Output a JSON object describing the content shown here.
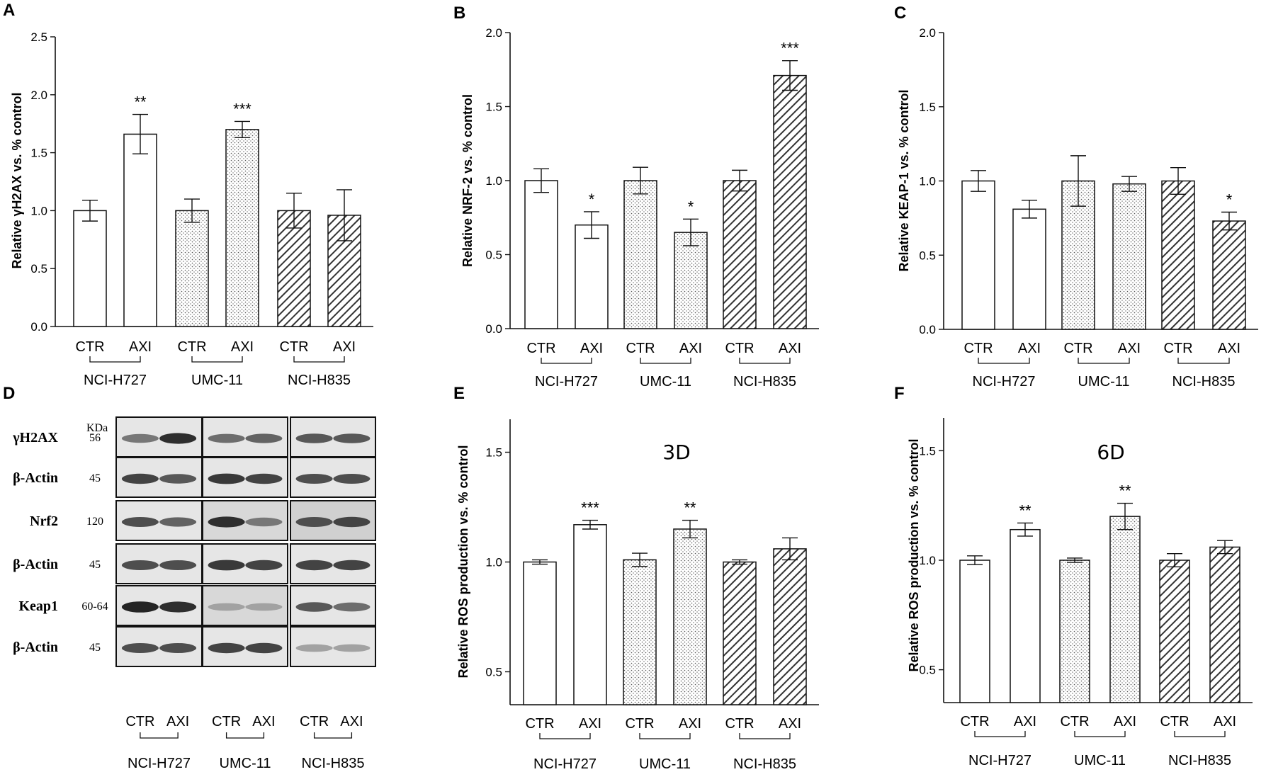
{
  "panels": {
    "A": "A",
    "B": "B",
    "C": "C",
    "D": "D",
    "E": "E",
    "F": "F"
  },
  "chart_data": [
    {
      "id": "A",
      "type": "bar",
      "ylabel": "Relative γH2AX vs. % control",
      "ylim": [
        0,
        2.5
      ],
      "yticks": [
        "0.0",
        "0.5",
        "1.0",
        "1.5",
        "2.0",
        "2.5"
      ],
      "categories": [
        "CTR",
        "AXI",
        "CTR",
        "AXI",
        "CTR",
        "AXI"
      ],
      "groups": [
        "NCI-H727",
        "UMC-11",
        "NCI-H835"
      ],
      "values": [
        1.0,
        1.66,
        1.0,
        1.7,
        1.0,
        0.96
      ],
      "errors": [
        0.09,
        0.17,
        0.1,
        0.07,
        0.15,
        0.22
      ],
      "significance": [
        "",
        "**",
        "",
        "***",
        "",
        ""
      ],
      "patterns": [
        "none",
        "none",
        "dots",
        "dots",
        "hatch",
        "hatch"
      ],
      "title": ""
    },
    {
      "id": "B",
      "type": "bar",
      "ylabel": "Relative NRF-2 vs. % control",
      "ylim": [
        0,
        2.0
      ],
      "yticks": [
        "0.0",
        "0.5",
        "1.0",
        "1.5",
        "2.0"
      ],
      "categories": [
        "CTR",
        "AXI",
        "CTR",
        "AXI",
        "CTR",
        "AXI"
      ],
      "groups": [
        "NCI-H727",
        "UMC-11",
        "NCI-H835"
      ],
      "values": [
        1.0,
        0.7,
        1.0,
        0.65,
        1.0,
        1.71
      ],
      "errors": [
        0.08,
        0.09,
        0.09,
        0.09,
        0.07,
        0.1
      ],
      "significance": [
        "",
        "*",
        "",
        "*",
        "",
        "***"
      ],
      "patterns": [
        "none",
        "none",
        "dots",
        "dots",
        "hatch",
        "hatch"
      ],
      "title": ""
    },
    {
      "id": "C",
      "type": "bar",
      "ylabel": "Relative KEAP-1 vs. % control",
      "ylim": [
        0,
        2.0
      ],
      "yticks": [
        "0.0",
        "0.5",
        "1.0",
        "1.5",
        "2.0"
      ],
      "categories": [
        "CTR",
        "AXI",
        "CTR",
        "AXI",
        "CTR",
        "AXI"
      ],
      "groups": [
        "NCI-H727",
        "UMC-11",
        "NCI-H835"
      ],
      "values": [
        1.0,
        0.81,
        1.0,
        0.98,
        1.0,
        0.73
      ],
      "errors": [
        0.07,
        0.06,
        0.17,
        0.05,
        0.09,
        0.06
      ],
      "significance": [
        "",
        "",
        "",
        "",
        "",
        "*"
      ],
      "patterns": [
        "none",
        "none",
        "dots",
        "dots",
        "hatch",
        "hatch"
      ],
      "title": ""
    },
    {
      "id": "E",
      "type": "bar",
      "ylabel": "Relative ROS production vs. % control",
      "ylim": [
        0.35,
        1.65
      ],
      "yticks": [
        "0.5",
        "1.0",
        "1.5"
      ],
      "categories": [
        "CTR",
        "AXI",
        "CTR",
        "AXI",
        "CTR",
        "AXI"
      ],
      "groups": [
        "NCI-H727",
        "UMC-11",
        "NCI-H835"
      ],
      "values": [
        1.0,
        1.17,
        1.01,
        1.15,
        1.0,
        1.06
      ],
      "errors": [
        0.01,
        0.02,
        0.03,
        0.04,
        0.01,
        0.05
      ],
      "significance": [
        "",
        "***",
        "",
        "**",
        "",
        ""
      ],
      "patterns": [
        "none",
        "none",
        "dots",
        "dots",
        "hatch",
        "hatch"
      ],
      "title": "3D"
    },
    {
      "id": "F",
      "type": "bar",
      "ylabel": "Relative ROS production vs. % control",
      "ylim": [
        0.35,
        1.65
      ],
      "yticks": [
        "0.5",
        "1.0",
        "1.5"
      ],
      "categories": [
        "CTR",
        "AXI",
        "CTR",
        "AXI",
        "CTR",
        "AXI"
      ],
      "groups": [
        "NCI-H727",
        "UMC-11",
        "NCI-H835"
      ],
      "values": [
        1.0,
        1.14,
        1.0,
        1.2,
        1.0,
        1.06
      ],
      "errors": [
        0.02,
        0.03,
        0.01,
        0.06,
        0.03,
        0.03
      ],
      "significance": [
        "",
        "**",
        "",
        "**",
        "",
        ""
      ],
      "patterns": [
        "none",
        "none",
        "dots",
        "dots",
        "hatch",
        "hatch"
      ],
      "title": "6D"
    }
  ],
  "blot": {
    "kda_header": "KDa",
    "rows": [
      {
        "label": "γH2AX",
        "kda": "56"
      },
      {
        "label": "β-Actin",
        "kda": "45"
      },
      {
        "label": "Nrf2",
        "kda": "120"
      },
      {
        "label": "β-Actin",
        "kda": "45"
      },
      {
        "label": "Keap1",
        "kda": "60-64"
      },
      {
        "label": "β-Actin",
        "kda": "45"
      }
    ],
    "categories": [
      "CTR",
      "AXI",
      "CTR",
      "AXI",
      "CTR",
      "AXI"
    ],
    "groups": [
      "NCI-H727",
      "UMC-11",
      "NCI-H835"
    ],
    "band_intensity": [
      [
        0.55,
        0.9,
        0.6,
        0.65,
        0.7,
        0.7
      ],
      [
        0.8,
        0.7,
        0.85,
        0.8,
        0.75,
        0.75
      ],
      [
        0.75,
        0.65,
        0.9,
        0.55,
        0.75,
        0.8
      ],
      [
        0.75,
        0.75,
        0.85,
        0.8,
        0.8,
        0.8
      ],
      [
        0.95,
        0.9,
        0.35,
        0.35,
        0.7,
        0.6
      ],
      [
        0.75,
        0.75,
        0.8,
        0.8,
        0.35,
        0.35
      ]
    ]
  },
  "colors": {
    "ink": "#111111",
    "bar_fill": "#ffffff",
    "pattern": "#333333"
  }
}
